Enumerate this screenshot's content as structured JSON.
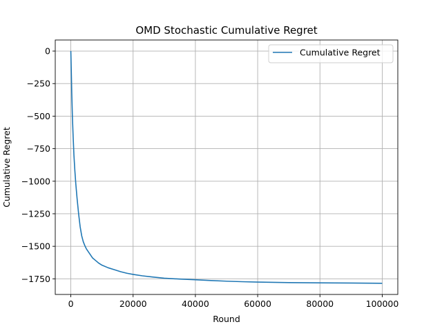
{
  "chart_data": {
    "type": "line",
    "title": "OMD Stochastic Cumulative Regret",
    "xlabel": "Round",
    "ylabel": "Cumulative Regret",
    "xlim": [
      -5000,
      105000
    ],
    "ylim": [
      -1870,
      85
    ],
    "grid": true,
    "legend_position": "top-right",
    "x_ticks": [
      0,
      20000,
      40000,
      60000,
      80000,
      100000
    ],
    "y_ticks": [
      0,
      -250,
      -500,
      -750,
      -1000,
      -1250,
      -1500,
      -1750
    ],
    "x_tick_labels": [
      "0",
      "20000",
      "40000",
      "60000",
      "80000",
      "100000"
    ],
    "y_tick_labels": [
      "0",
      "−250",
      "−500",
      "−750",
      "−1000",
      "−1250",
      "−1500",
      "−1750"
    ],
    "series": [
      {
        "name": "Cumulative Regret",
        "color": "#1f77b4",
        "x": [
          0,
          150,
          300,
          500,
          750,
          1000,
          1300,
          1600,
          2000,
          2500,
          3000,
          3500,
          4000,
          4500,
          5000,
          6000,
          7000,
          8000,
          9000,
          10000,
          12000,
          14000,
          16000,
          18000,
          20000,
          23000,
          26000,
          30000,
          35000,
          40000,
          45000,
          50000,
          55000,
          60000,
          70000,
          80000,
          90000,
          100000
        ],
        "y": [
          0,
          -150,
          -320,
          -500,
          -660,
          -800,
          -920,
          -1020,
          -1130,
          -1250,
          -1350,
          -1420,
          -1465,
          -1495,
          -1520,
          -1555,
          -1590,
          -1610,
          -1630,
          -1645,
          -1665,
          -1680,
          -1695,
          -1707,
          -1716,
          -1727,
          -1735,
          -1745,
          -1752,
          -1757,
          -1763,
          -1768,
          -1772,
          -1775,
          -1779,
          -1781,
          -1782,
          -1784
        ]
      }
    ]
  }
}
